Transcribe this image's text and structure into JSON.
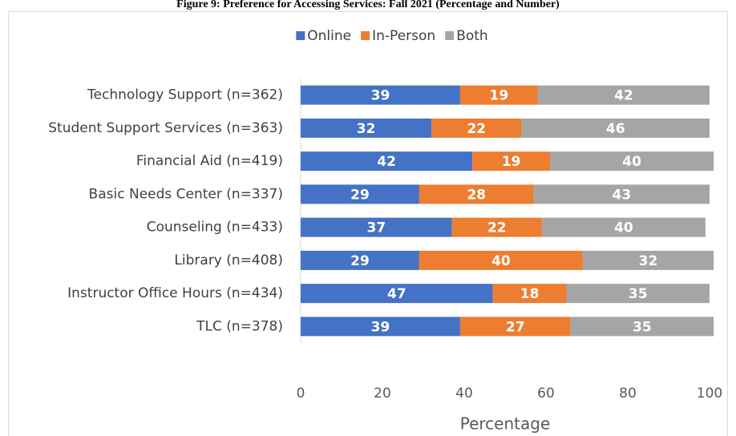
{
  "chart_data": {
    "type": "stacked_barh",
    "title": "Figure 9: Preference for Accessing Services: Fall 2021 (Percentage and Number)",
    "categories": [
      "Technology Support (n=362)",
      "Student Support Services (n=363)",
      "Financial Aid (n=419)",
      "Basic Needs Center (n=337)",
      "Counseling (n=433)",
      "Library (n=408)",
      "Instructor Office Hours (n=434)",
      "TLC (n=378)"
    ],
    "series": [
      {
        "name": "Online",
        "color": "#4472c4",
        "values": [
          39,
          32,
          42,
          29,
          37,
          29,
          47,
          39
        ]
      },
      {
        "name": "In-Person",
        "color": "#ed7d31",
        "values": [
          19,
          22,
          19,
          28,
          22,
          40,
          18,
          27
        ]
      },
      {
        "name": "Both",
        "color": "#a5a5a5",
        "values": [
          42,
          46,
          40,
          43,
          40,
          32,
          35,
          35
        ]
      }
    ],
    "xlabel": "Percentage",
    "xlim": [
      0,
      100
    ],
    "xticks": [
      0,
      20,
      40,
      60,
      80,
      100
    ],
    "legend": "top",
    "grid": false
  }
}
